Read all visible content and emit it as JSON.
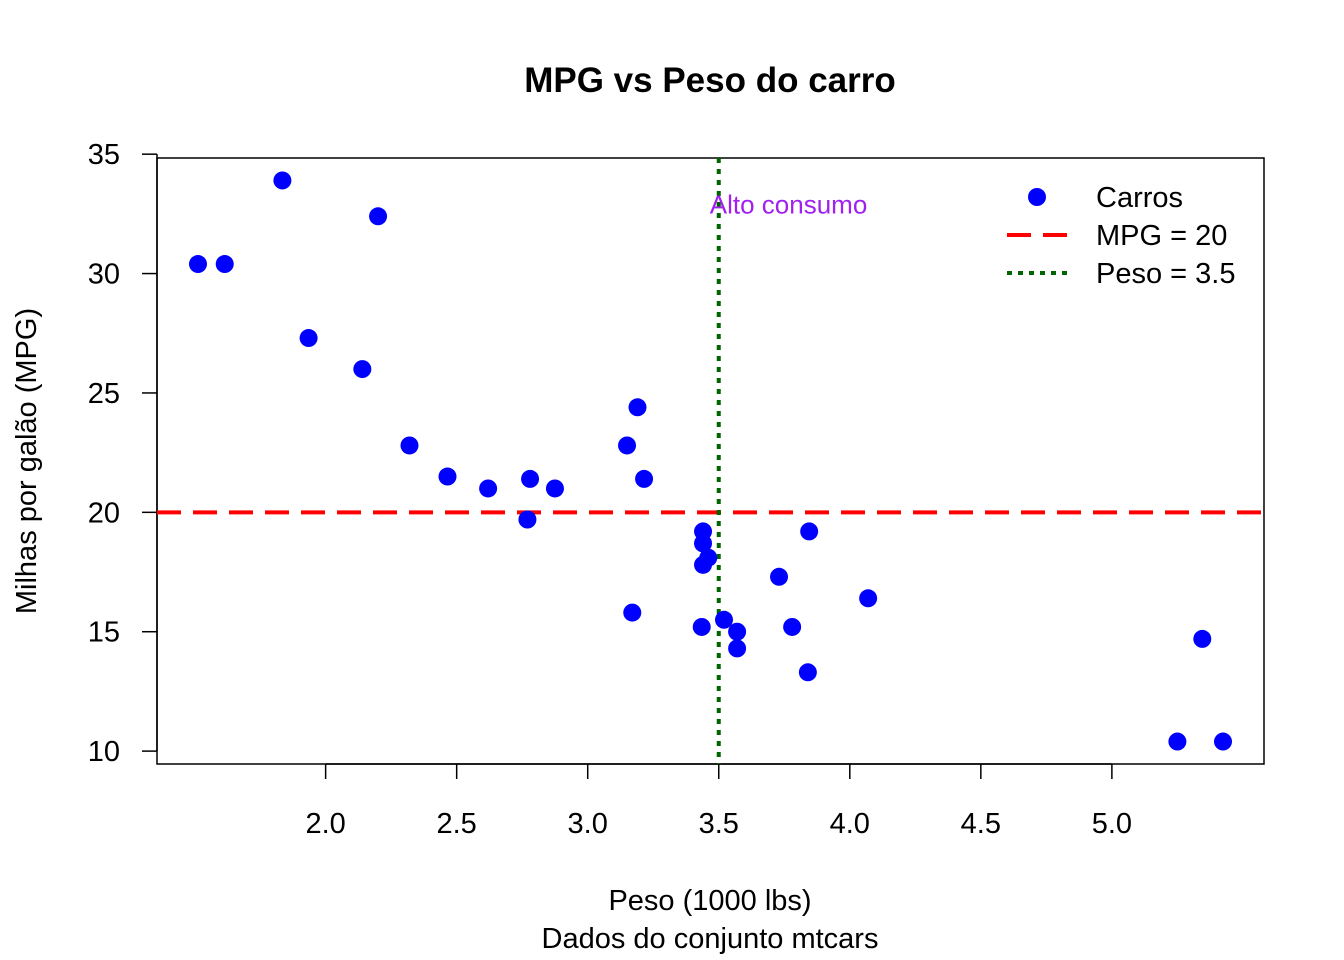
{
  "chart_data": {
    "type": "scatter",
    "title": "MPG vs Peso do carro",
    "xlabel": "Peso (1000 lbs)",
    "subtitle": "Dados do conjunto mtcars",
    "ylabel": "Milhas por galão (MPG)",
    "xlim": [
      1.513,
      5.424
    ],
    "ylim": [
      10.4,
      33.9
    ],
    "x_ticks": [
      "2.0",
      "2.5",
      "3.0",
      "3.5",
      "4.0",
      "4.5",
      "5.0"
    ],
    "y_ticks": [
      "10",
      "15",
      "20",
      "25",
      "30",
      "35"
    ],
    "grid": false,
    "series": [
      {
        "name": "Carros",
        "color": "#0000ff",
        "points": [
          {
            "x": 2.62,
            "y": 21.0
          },
          {
            "x": 2.875,
            "y": 21.0
          },
          {
            "x": 2.32,
            "y": 22.8
          },
          {
            "x": 3.215,
            "y": 21.4
          },
          {
            "x": 3.44,
            "y": 18.7
          },
          {
            "x": 3.46,
            "y": 18.1
          },
          {
            "x": 3.57,
            "y": 14.3
          },
          {
            "x": 3.19,
            "y": 24.4
          },
          {
            "x": 3.15,
            "y": 22.8
          },
          {
            "x": 3.44,
            "y": 19.2
          },
          {
            "x": 3.44,
            "y": 17.8
          },
          {
            "x": 4.07,
            "y": 16.4
          },
          {
            "x": 3.73,
            "y": 17.3
          },
          {
            "x": 3.78,
            "y": 15.2
          },
          {
            "x": 5.25,
            "y": 10.4
          },
          {
            "x": 5.424,
            "y": 10.4
          },
          {
            "x": 5.345,
            "y": 14.7
          },
          {
            "x": 2.2,
            "y": 32.4
          },
          {
            "x": 1.615,
            "y": 30.4
          },
          {
            "x": 1.835,
            "y": 33.9
          },
          {
            "x": 2.465,
            "y": 21.5
          },
          {
            "x": 3.52,
            "y": 15.5
          },
          {
            "x": 3.435,
            "y": 15.2
          },
          {
            "x": 3.84,
            "y": 13.3
          },
          {
            "x": 3.845,
            "y": 19.2
          },
          {
            "x": 1.935,
            "y": 27.3
          },
          {
            "x": 2.14,
            "y": 26.0
          },
          {
            "x": 1.513,
            "y": 30.4
          },
          {
            "x": 3.17,
            "y": 15.8
          },
          {
            "x": 2.77,
            "y": 19.7
          },
          {
            "x": 3.57,
            "y": 15.0
          },
          {
            "x": 2.78,
            "y": 21.4
          }
        ]
      }
    ],
    "reference_lines": [
      {
        "name": "MPG = 20",
        "orientation": "horizontal",
        "value": 20,
        "color": "#ff0000",
        "style": "dashed"
      },
      {
        "name": "Peso = 3.5",
        "orientation": "vertical",
        "value": 3.5,
        "color": "#006400",
        "style": "dotted"
      }
    ],
    "annotations": [
      {
        "text": "Alto consumo",
        "x": 3.5,
        "y": 32.9,
        "color": "#a020f0"
      }
    ],
    "legend": {
      "position": "top-right",
      "box": false,
      "entries": [
        "Carros",
        "MPG = 20",
        "Peso = 3.5"
      ]
    }
  }
}
